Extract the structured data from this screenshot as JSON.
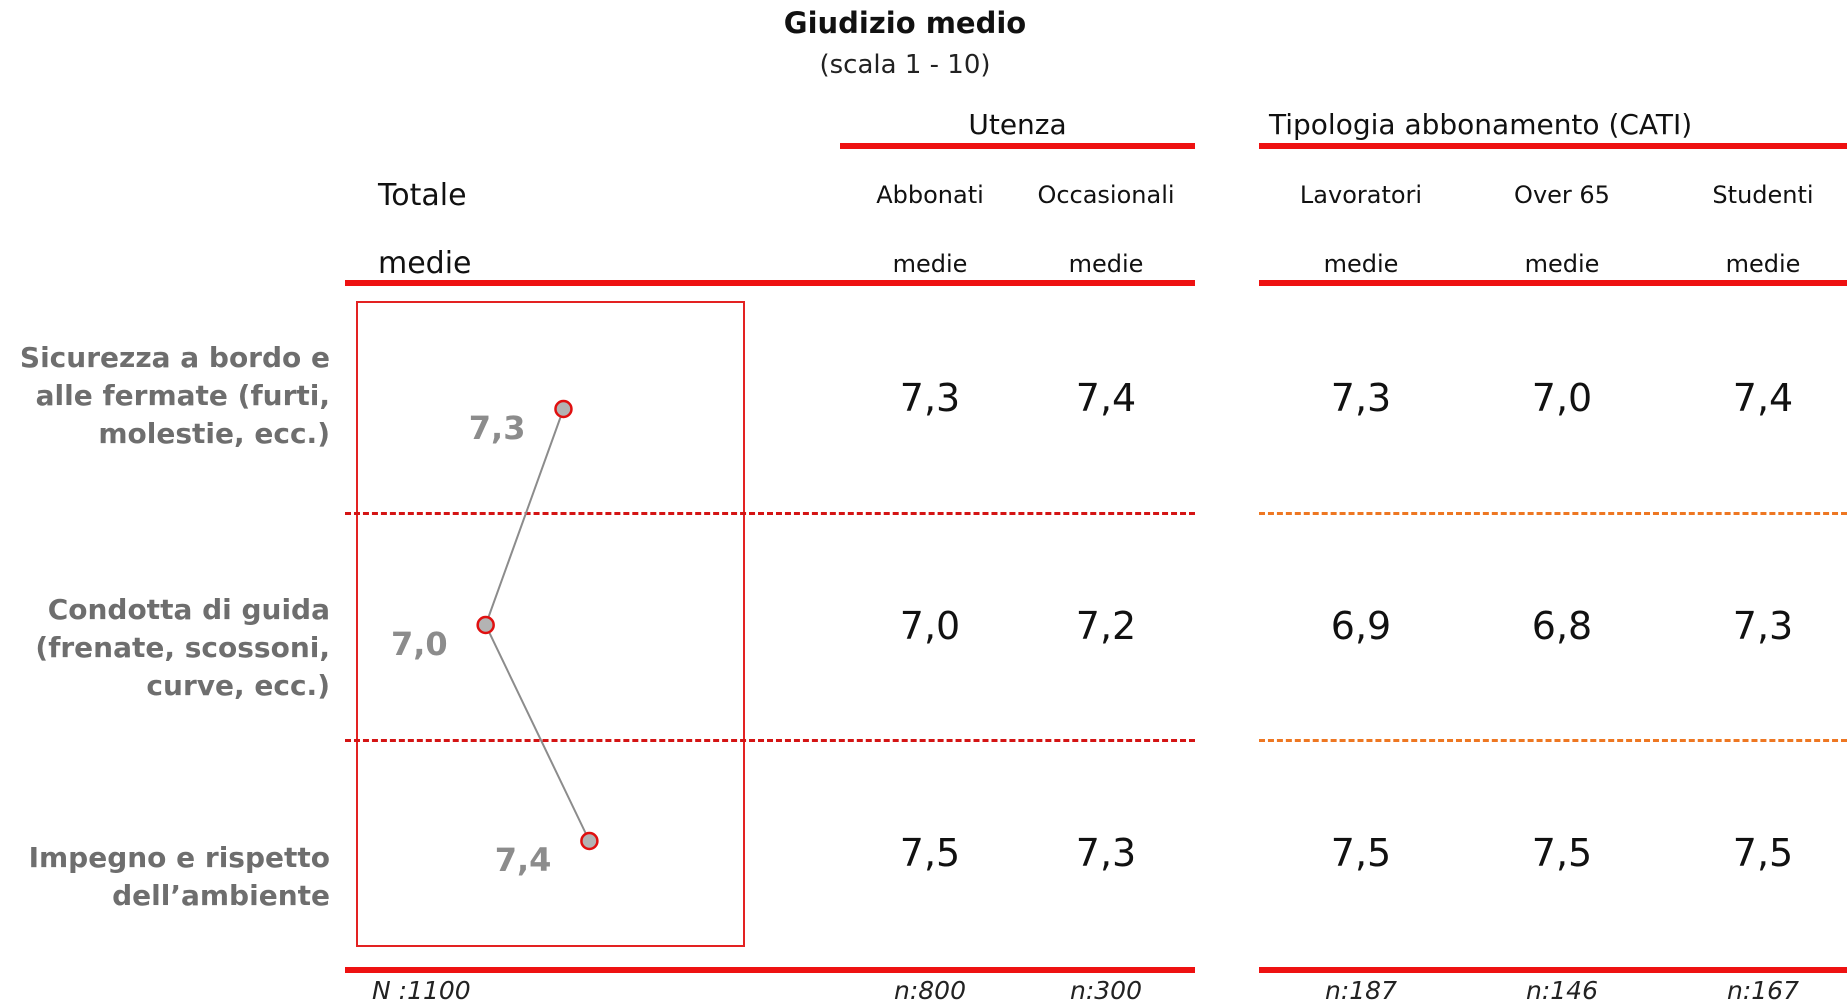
{
  "chart_data": {
    "type": "table",
    "title": "Giudizio medio",
    "subtitle": "(scala 1 - 10)",
    "total": {
      "label": "Totale",
      "sublabel": "medie",
      "footer": "N :1100",
      "values": [
        7.3,
        7.0,
        7.4
      ],
      "value_labels": [
        "7,3",
        "7,0",
        "7,4"
      ]
    },
    "groups": [
      {
        "name": "Utenza",
        "columns": [
          {
            "name": "Abbonati",
            "sublabel": "medie",
            "values": [
              "7,3",
              "7,0",
              "7,5"
            ],
            "footer": "n:800"
          },
          {
            "name": "Occasionali",
            "sublabel": "medie",
            "values": [
              "7,4",
              "7,2",
              "7,3"
            ],
            "footer": "n:300"
          }
        ]
      },
      {
        "name": "Tipologia abbonamento (CATI)",
        "columns": [
          {
            "name": "Lavoratori",
            "sublabel": "medie",
            "values": [
              "7,3",
              "6,9",
              "7,5"
            ],
            "footer": "n:187"
          },
          {
            "name": "Over 65",
            "sublabel": "medie",
            "values": [
              "7,0",
              "6,8",
              "7,5"
            ],
            "footer": "n:146"
          },
          {
            "name": "Studenti",
            "sublabel": "medie",
            "values": [
              "7,4",
              "7,3",
              "7,5"
            ],
            "footer": "n:167"
          }
        ]
      }
    ],
    "rows": [
      [
        "Sicurezza a bordo e",
        "alle fermate (furti,",
        "molestie, ecc.)"
      ],
      [
        "Condotta di guida",
        "(frenate, scossoni,",
        "curve, ecc.)"
      ],
      [
        "Impegno e rispetto",
        "dell’ambiente"
      ]
    ],
    "xlim": [
      6.5,
      8.0
    ],
    "colors": {
      "accent": "#ee1111",
      "dot_fill": "#b3b3b3",
      "dot_stroke": "#e01010",
      "line": "#8c8c8c",
      "dash_right": "#ee7722"
    }
  }
}
